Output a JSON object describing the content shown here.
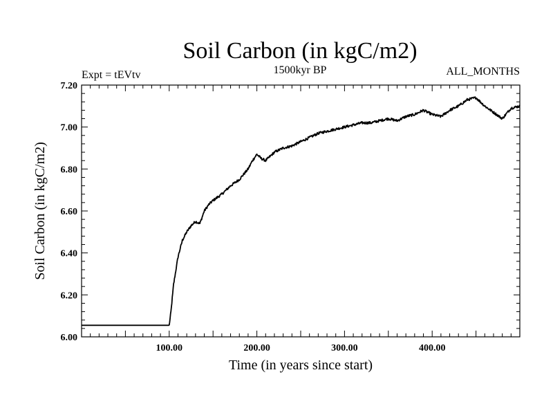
{
  "chart_data": {
    "type": "line",
    "title": "Soil Carbon (in kgC/m2)",
    "subtitle_left": "Expt = tEVtv",
    "subtitle_center": "1500kyr BP",
    "subtitle_right": "ALL_MONTHS",
    "xlabel": "Time (in years since start)",
    "ylabel": "Soil Carbon (in kgC/m2)",
    "xlim": [
      0,
      500
    ],
    "ylim": [
      6.0,
      7.2
    ],
    "x_ticks": [
      100,
      200,
      300,
      400
    ],
    "x_tick_labels": [
      "100.00",
      "200.00",
      "300.00",
      "400.00"
    ],
    "y_ticks": [
      6.0,
      6.2,
      6.4,
      6.6,
      6.8,
      7.0,
      7.2
    ],
    "y_tick_labels": [
      "6.00",
      "6.20",
      "6.40",
      "6.60",
      "6.80",
      "7.00",
      "7.20"
    ],
    "series": [
      {
        "name": "Soil Carbon",
        "color": "#000000",
        "x": [
          0,
          99,
          100,
          102,
          105,
          110,
          115,
          120,
          125,
          130,
          135,
          140,
          145,
          150,
          160,
          170,
          180,
          190,
          195,
          200,
          205,
          210,
          220,
          230,
          240,
          250,
          260,
          270,
          280,
          290,
          300,
          310,
          320,
          330,
          340,
          350,
          360,
          370,
          380,
          390,
          400,
          410,
          420,
          430,
          440,
          450,
          455,
          460,
          470,
          480,
          490,
          500
        ],
        "y": [
          6.055,
          6.055,
          6.055,
          6.12,
          6.25,
          6.38,
          6.46,
          6.5,
          6.53,
          6.55,
          6.54,
          6.6,
          6.63,
          6.65,
          6.68,
          6.72,
          6.75,
          6.8,
          6.84,
          6.87,
          6.85,
          6.84,
          6.88,
          6.9,
          6.91,
          6.93,
          6.95,
          6.97,
          6.98,
          6.99,
          7.0,
          7.01,
          7.02,
          7.02,
          7.03,
          7.04,
          7.03,
          7.05,
          7.06,
          7.08,
          7.06,
          7.05,
          7.08,
          7.1,
          7.13,
          7.14,
          7.12,
          7.1,
          7.07,
          7.04,
          7.09,
          7.1
        ]
      }
    ]
  }
}
